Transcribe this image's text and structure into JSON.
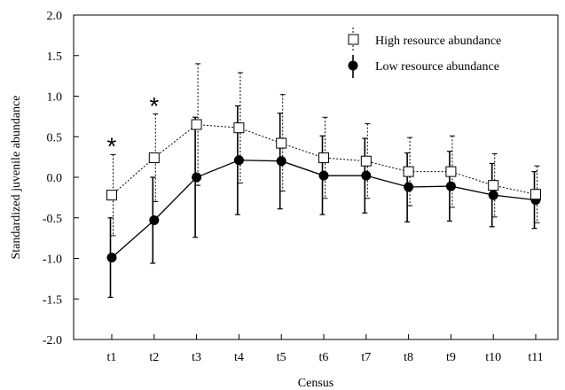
{
  "chart_data": {
    "type": "line",
    "title": "",
    "xlabel": "Census",
    "ylabel": "Standardized juvenile abundance",
    "ylim": [
      -2.0,
      2.0
    ],
    "yticks": [
      "2.0",
      "1.5",
      "1.0",
      "0.5",
      "0.0",
      "-0.5",
      "-1.0",
      "-1.5",
      "-2.0"
    ],
    "ytick_values": [
      2.0,
      1.5,
      1.0,
      0.5,
      0.0,
      -0.5,
      -1.0,
      -1.5,
      -2.0
    ],
    "categories": [
      "t1",
      "t2",
      "t3",
      "t4",
      "t5",
      "t6",
      "t7",
      "t8",
      "t9",
      "t10",
      "t11"
    ],
    "series": [
      {
        "name": "High resource abundance",
        "marker": "open-square",
        "line_style": "dotted",
        "values": [
          -0.22,
          0.24,
          0.65,
          0.61,
          0.42,
          0.24,
          0.2,
          0.07,
          0.07,
          -0.1,
          -0.21
        ],
        "err_upper": [
          0.28,
          0.78,
          1.4,
          1.29,
          1.02,
          0.74,
          0.66,
          0.49,
          0.51,
          0.29,
          0.14
        ],
        "err_lower": [
          -0.72,
          -0.3,
          -0.1,
          -0.07,
          -0.17,
          -0.26,
          -0.26,
          -0.35,
          -0.37,
          -0.49,
          -0.56
        ]
      },
      {
        "name": "Low resource abundance",
        "marker": "filled-circle",
        "line_style": "solid",
        "values": [
          -0.99,
          -0.53,
          0.0,
          0.21,
          0.2,
          0.02,
          0.02,
          -0.12,
          -0.11,
          -0.22,
          -0.28
        ],
        "err_upper": [
          -0.5,
          0.0,
          0.74,
          0.88,
          0.79,
          0.51,
          0.48,
          0.3,
          0.32,
          0.17,
          0.07
        ],
        "err_lower": [
          -1.48,
          -1.06,
          -0.74,
          -0.46,
          -0.39,
          -0.46,
          -0.44,
          -0.55,
          -0.54,
          -0.61,
          -0.63
        ]
      }
    ],
    "annotations": [
      {
        "text": "*",
        "category": "t1",
        "y": 0.43
      },
      {
        "text": "*",
        "category": "t2",
        "y": 0.93
      }
    ],
    "legend_position": "top-right",
    "grid": false
  }
}
